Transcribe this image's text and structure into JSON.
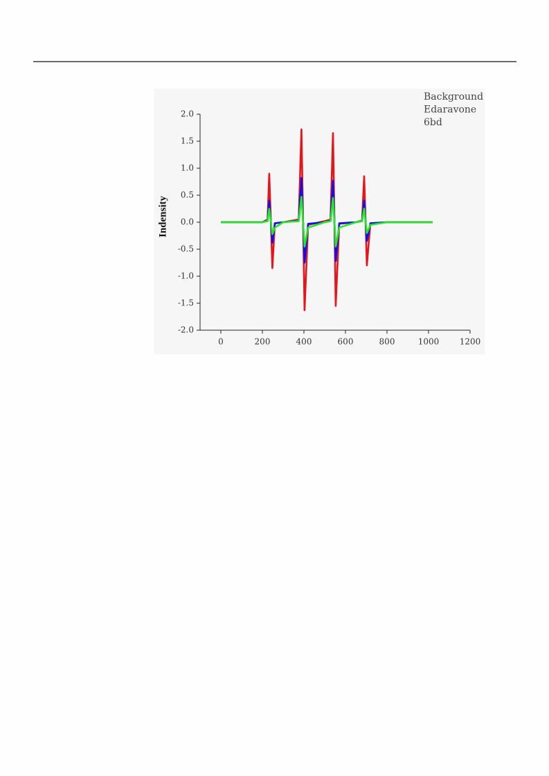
{
  "chart_data": {
    "type": "line",
    "y_label": "Indensity",
    "x": [
      0,
      200,
      225,
      233,
      241,
      248,
      260,
      300,
      375,
      388,
      396,
      403,
      420,
      500,
      528,
      540,
      547,
      553,
      570,
      650,
      680,
      690,
      697,
      703,
      720,
      800,
      1020
    ],
    "series": [
      {
        "name": "Background",
        "color": "#e8141c",
        "values": [
          0,
          0,
          0.05,
          0.9,
          0,
          -0.85,
          -0.02,
          0,
          0.05,
          1.72,
          0,
          -1.63,
          -0.05,
          0.02,
          0.05,
          1.65,
          0,
          -1.55,
          -0.03,
          0,
          0.03,
          0.85,
          0,
          -0.8,
          -0.02,
          0,
          0
        ]
      },
      {
        "name": "Edaravone",
        "color": "#1010e8",
        "values": [
          0,
          0,
          0.03,
          0.4,
          0,
          -0.38,
          -0.02,
          0,
          0.03,
          0.82,
          0,
          -0.75,
          -0.03,
          0,
          0.03,
          0.77,
          0,
          -0.72,
          -0.02,
          0,
          0.02,
          0.4,
          0,
          -0.35,
          -0.02,
          0,
          0
        ]
      },
      {
        "name": "6bd",
        "color": "#22e822",
        "values": [
          0,
          0,
          0.02,
          0.25,
          0,
          -0.22,
          -0.1,
          0,
          0.02,
          0.47,
          0,
          -0.45,
          -0.1,
          0,
          0.02,
          0.45,
          0,
          -0.45,
          -0.1,
          0,
          0.02,
          0.25,
          0,
          -0.2,
          -0.05,
          0,
          0
        ]
      }
    ],
    "xlim": [
      -100,
      1200
    ],
    "xticks": [
      0,
      200,
      400,
      600,
      800,
      1000,
      1200
    ],
    "ylim": [
      -2,
      2
    ],
    "yticks": [
      {
        "value": -2,
        "label": "-2.0"
      },
      {
        "value": -1.5,
        "label": "-1.5"
      },
      {
        "value": -1,
        "label": "-1.0"
      },
      {
        "value": -0.5,
        "label": "-0.5"
      },
      {
        "value": 0,
        "label": "0.0"
      },
      {
        "value": 0.5,
        "label": "0.5"
      },
      {
        "value": 1,
        "label": "1.0"
      },
      {
        "value": 1.5,
        "label": "1.5"
      },
      {
        "value": 2,
        "label": "2.0"
      }
    ],
    "legend": "upper right",
    "grid": false
  }
}
